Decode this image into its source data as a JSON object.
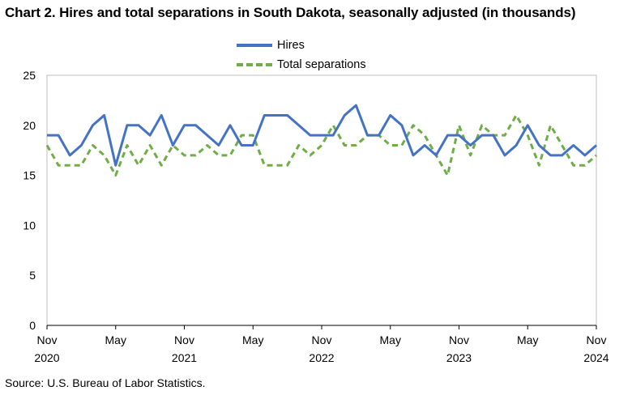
{
  "title": "Chart 2. Hires and total separations in South Dakota, seasonally adjusted (in thousands)",
  "source": "Source: U.S. Bureau of Labor Statistics.",
  "chart_data": {
    "type": "line",
    "title": "Chart 2. Hires and total separations in South Dakota, seasonally adjusted (in thousands)",
    "xlabel": "",
    "ylabel": "",
    "x": [
      "Nov 2020",
      "Dec 2020",
      "Jan 2021",
      "Feb 2021",
      "Mar 2021",
      "Apr 2021",
      "May 2021",
      "Jun 2021",
      "Jul 2021",
      "Aug 2021",
      "Sep 2021",
      "Oct 2021",
      "Nov 2021",
      "Dec 2021",
      "Jan 2022",
      "Feb 2022",
      "Mar 2022",
      "Apr 2022",
      "May 2022",
      "Jun 2022",
      "Jul 2022",
      "Aug 2022",
      "Sep 2022",
      "Oct 2022",
      "Nov 2022",
      "Dec 2022",
      "Jan 2023",
      "Feb 2023",
      "Mar 2023",
      "Apr 2023",
      "May 2023",
      "Jun 2023",
      "Jul 2023",
      "Aug 2023",
      "Sep 2023",
      "Oct 2023",
      "Nov 2023",
      "Dec 2023",
      "Jan 2024",
      "Feb 2024",
      "Mar 2024",
      "Apr 2024",
      "May 2024",
      "Jun 2024",
      "Jul 2024",
      "Aug 2024",
      "Sep 2024",
      "Oct 2024",
      "Nov 2024"
    ],
    "x_tick_labels": [
      {
        "month": "Nov",
        "year": "2020"
      },
      {
        "month": "May",
        "year": ""
      },
      {
        "month": "Nov",
        "year": "2021"
      },
      {
        "month": "May",
        "year": ""
      },
      {
        "month": "Nov",
        "year": "2022"
      },
      {
        "month": "May",
        "year": ""
      },
      {
        "month": "Nov",
        "year": "2023"
      },
      {
        "month": "May",
        "year": ""
      },
      {
        "month": "Nov",
        "year": "2024"
      }
    ],
    "y_ticks": [
      "0",
      "5",
      "10",
      "15",
      "20",
      "25"
    ],
    "ylim": [
      0,
      25
    ],
    "grid": false,
    "legend": "top-center",
    "series": [
      {
        "name": "Hires",
        "color": "#4472c4",
        "style": "solid",
        "values": [
          19,
          19,
          17,
          18,
          20,
          21,
          16,
          20,
          20,
          19,
          21,
          18,
          20,
          20,
          19,
          18,
          20,
          18,
          18,
          21,
          21,
          21,
          20,
          19,
          19,
          19,
          21,
          22,
          19,
          19,
          21,
          20,
          17,
          18,
          17,
          19,
          19,
          18,
          19,
          19,
          17,
          18,
          20,
          18,
          17,
          17,
          18,
          17,
          18
        ]
      },
      {
        "name": "Total separations",
        "color": "#70ad47",
        "style": "dashed",
        "values": [
          18,
          16,
          16,
          16,
          18,
          17,
          15,
          18,
          16,
          18,
          16,
          18,
          17,
          17,
          18,
          17,
          17,
          19,
          19,
          16,
          16,
          16,
          18,
          17,
          18,
          20,
          18,
          18,
          19,
          19,
          18,
          18,
          20,
          19,
          17,
          15,
          20,
          17,
          20,
          19,
          19,
          21,
          19,
          16,
          20,
          18,
          16,
          16,
          17
        ]
      }
    ]
  }
}
